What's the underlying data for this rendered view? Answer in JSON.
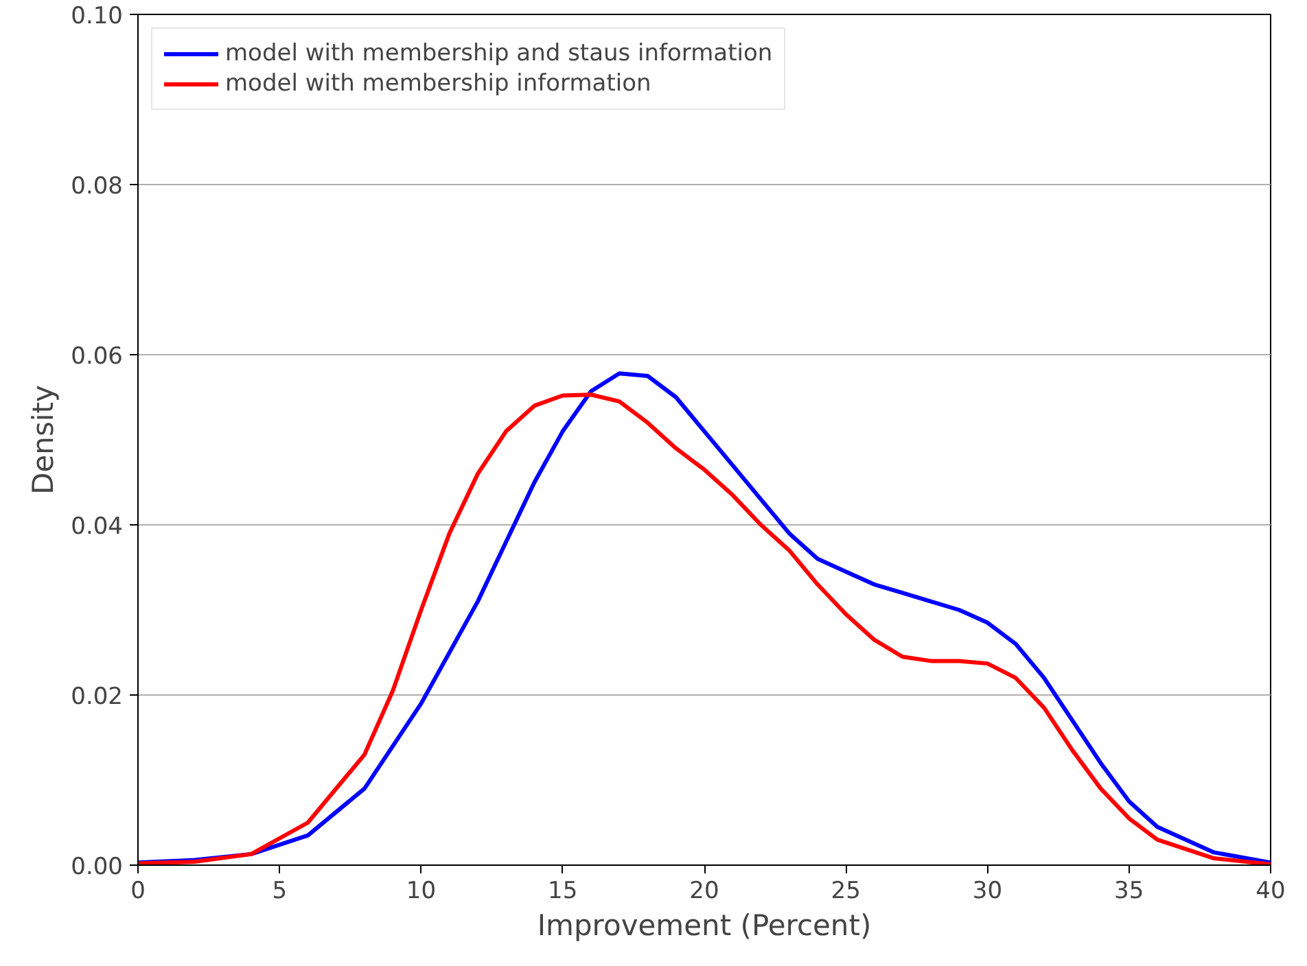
{
  "chart_data": {
    "type": "line",
    "xlabel": "Improvement (Percent)",
    "ylabel": "Density",
    "xlim": [
      0,
      40
    ],
    "xticks": [
      0,
      5,
      10,
      15,
      20,
      25,
      30,
      35,
      40
    ],
    "ylim": [
      0,
      0.1
    ],
    "yticks": [
      {
        "value": 0,
        "label": "0.00"
      },
      {
        "value": 0.02,
        "label": "0.02"
      },
      {
        "value": 0.04,
        "label": "0.04"
      },
      {
        "value": 0.06,
        "label": "0.06"
      },
      {
        "value": 0.08,
        "label": "0.08"
      },
      {
        "value": 0.1,
        "label": "0.10"
      }
    ],
    "grid": "y",
    "legend": "top left",
    "line_style": "solid",
    "marker": "none",
    "series": [
      {
        "name": "model with membership and staus information",
        "color": "#0000ff",
        "x": [
          0,
          2,
          4,
          6,
          8,
          10,
          12,
          13,
          14,
          15,
          16,
          17,
          18,
          19,
          20,
          21,
          22,
          23,
          24,
          25,
          26,
          27,
          28,
          29,
          30,
          31,
          32,
          33,
          34,
          35,
          36,
          38,
          40
        ],
        "values": [
          0.0003,
          0.0006,
          0.0013,
          0.0035,
          0.009,
          0.019,
          0.031,
          0.038,
          0.045,
          0.051,
          0.0557,
          0.0578,
          0.0575,
          0.055,
          0.051,
          0.047,
          0.043,
          0.039,
          0.036,
          0.0345,
          0.033,
          0.032,
          0.031,
          0.03,
          0.0285,
          0.026,
          0.022,
          0.017,
          0.012,
          0.0075,
          0.0045,
          0.0015,
          0.0003
        ]
      },
      {
        "name": "model with membership information",
        "color": "#ff0000",
        "x": [
          0,
          2,
          4,
          6,
          8,
          9,
          10,
          11,
          12,
          13,
          14,
          15,
          16,
          17,
          18,
          19,
          20,
          21,
          22,
          23,
          24,
          25,
          26,
          27,
          28,
          29,
          30,
          31,
          32,
          33,
          34,
          35,
          36,
          38,
          40
        ],
        "values": [
          0.0002,
          0.0004,
          0.0013,
          0.005,
          0.013,
          0.0205,
          0.03,
          0.039,
          0.046,
          0.051,
          0.054,
          0.0552,
          0.0553,
          0.0545,
          0.052,
          0.049,
          0.0465,
          0.0435,
          0.04,
          0.037,
          0.033,
          0.0295,
          0.0265,
          0.0245,
          0.024,
          0.024,
          0.0237,
          0.022,
          0.0185,
          0.0135,
          0.009,
          0.0055,
          0.003,
          0.0008,
          0.0001
        ]
      }
    ]
  }
}
